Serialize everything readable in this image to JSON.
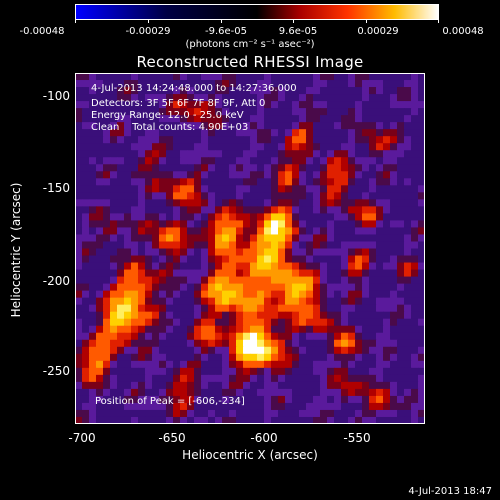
{
  "colorbar": {
    "ticks": [
      "-0.00048",
      "-0.00029",
      "-9.6e-05",
      "9.6e-05",
      "0.00029",
      "0.00048"
    ],
    "units": "(photons cm⁻² s⁻¹ asec⁻²)",
    "colors": [
      "#0000ff",
      "#000000",
      "#ff0000",
      "#ffff00",
      "#ffffff"
    ]
  },
  "title": "Reconstructed RHESSI Image",
  "info": {
    "time_range": "4-Jul-2013 14:24:48.000 to 14:27:36.000",
    "detectors": "Detectors: 3F 5F 6F 7F 8F 9F, Att 0",
    "energy": "Energy Range: 12.0 - 25.0 keV",
    "clean": "Clean    Total counts: 4.90E+03"
  },
  "peak_label": "Position of Peak = [-606,-234]",
  "axes": {
    "xlabel": "Heliocentric X (arcsec)",
    "ylabel": "Heliocentric Y (arcsec)",
    "xticks": [
      "-700",
      "-650",
      "-600",
      "-550"
    ],
    "yticks": [
      "-100",
      "-150",
      "-200",
      "-250"
    ],
    "xlim": [
      -700,
      -513
    ],
    "ylim": [
      -280,
      -92
    ]
  },
  "datestamp": "4-Jul-2013 18:47"
}
